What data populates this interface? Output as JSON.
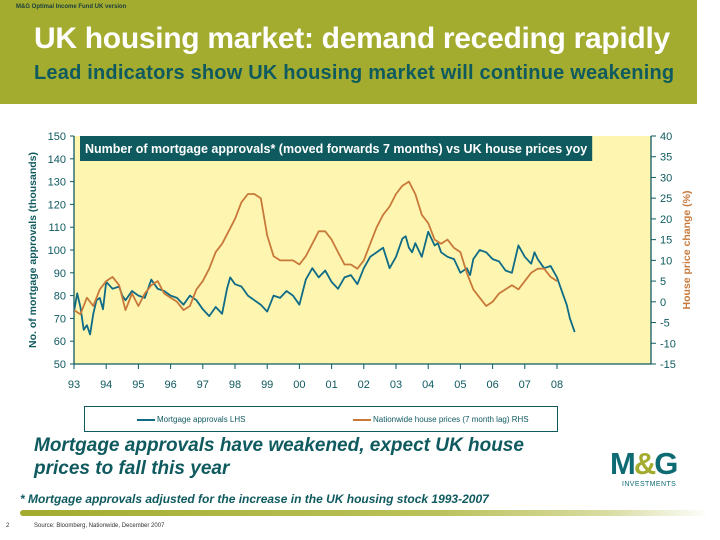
{
  "header": {
    "fund_label": "M&G Optimal Income Fund UK version",
    "title": "UK housing market: demand receding rapidly",
    "subtitle": "Lead indicators show UK housing market will continue weakening"
  },
  "conclusion": "Mortgage approvals have weakened, expect UK house prices to fall this year",
  "footnote": "* Mortgage approvals adjusted for the increase in the UK housing stock 1993-2007",
  "page_number": "2",
  "source": "Source: Bloomberg, Nationwide, December 2007",
  "logo": {
    "main_left": "M",
    "main_amp": "&",
    "main_right": "G",
    "sub": "INVESTMENTS"
  },
  "colors": {
    "header": "#a3ac2e",
    "teal": "#0f5a5f",
    "mortgage": "#0f6b86",
    "nationwide": "#c8793a",
    "plot_bg": "#fef6b0"
  },
  "chart_data": {
    "type": "line",
    "title": "Number of mortgage approvals* (moved forwards 7 months) vs UK house prices yoy",
    "ylabel": "No. of mortgage approvals (thousands)",
    "y2label": "House price change (%)",
    "ylim": [
      50,
      150
    ],
    "y2lim": [
      -15,
      40
    ],
    "xlim": [
      1993,
      2008.6
    ],
    "yticks": [
      "50",
      "60",
      "70",
      "80",
      "90",
      "100",
      "110",
      "120",
      "130",
      "140",
      "150"
    ],
    "y2ticks": [
      "-15",
      "-10",
      "-5",
      "0",
      "5",
      "10",
      "15",
      "20",
      "25",
      "30",
      "35",
      "40"
    ],
    "xticks": [
      "93",
      "94",
      "95",
      "96",
      "97",
      "98",
      "99",
      "00",
      "01",
      "02",
      "03",
      "04",
      "05",
      "06",
      "07",
      "08"
    ],
    "legend_position": "bottom",
    "grid": false,
    "series": [
      {
        "name": "Mortgage approvals LHS",
        "axis": "left",
        "x": [
          1993.0,
          1993.1,
          1993.2,
          1993.3,
          1993.4,
          1993.5,
          1993.6,
          1993.7,
          1993.8,
          1993.9,
          1994.0,
          1994.2,
          1994.4,
          1994.5,
          1994.6,
          1994.8,
          1995.0,
          1995.2,
          1995.4,
          1995.6,
          1995.8,
          1996.0,
          1996.2,
          1996.4,
          1996.6,
          1996.8,
          1997.0,
          1997.2,
          1997.4,
          1997.6,
          1997.75,
          1997.85,
          1998.0,
          1998.2,
          1998.3,
          1998.4,
          1998.6,
          1998.8,
          1999.0,
          1999.2,
          1999.4,
          1999.6,
          1999.8,
          2000.0,
          2000.2,
          2000.4,
          2000.6,
          2000.8,
          2001.0,
          2001.2,
          2001.4,
          2001.6,
          2001.8,
          2002.0,
          2002.2,
          2002.4,
          2002.6,
          2002.8,
          2003.0,
          2003.2,
          2003.3,
          2003.4,
          2003.5,
          2003.6,
          2003.8,
          2004.0,
          2004.2,
          2004.3,
          2004.4,
          2004.6,
          2004.8,
          2005.0,
          2005.2,
          2005.3,
          2005.4,
          2005.6,
          2005.8,
          2006.0,
          2006.2,
          2006.4,
          2006.6,
          2006.8,
          2007.0,
          2007.2,
          2007.3,
          2007.4,
          2007.6,
          2007.8,
          2008.0,
          2008.2,
          2008.3,
          2008.4,
          2008.55
        ],
        "values": [
          73,
          81,
          75,
          65,
          67,
          63,
          72,
          78,
          79,
          74,
          86,
          83,
          84,
          80,
          78,
          82,
          80,
          79,
          87,
          83,
          82,
          80,
          79,
          76,
          80,
          78,
          74,
          71,
          75,
          72,
          83,
          88,
          85,
          84,
          82,
          80,
          78,
          76,
          73,
          80,
          79,
          82,
          80,
          76,
          87,
          92,
          88,
          91,
          86,
          83,
          88,
          89,
          85,
          92,
          97,
          99,
          101,
          92,
          97,
          105,
          106,
          101,
          99,
          103,
          97,
          108,
          102,
          103,
          99,
          97,
          96,
          90,
          92,
          89,
          96,
          100,
          99,
          96,
          95,
          91,
          90,
          102,
          97,
          94,
          99,
          96,
          92,
          93,
          88,
          80,
          76,
          70,
          64
        ]
      },
      {
        "name": "Nationwide house prices (7 month lag) RHS",
        "axis": "right",
        "x": [
          1993.0,
          1993.2,
          1993.4,
          1993.6,
          1993.8,
          1994.0,
          1994.2,
          1994.4,
          1994.6,
          1994.8,
          1995.0,
          1995.2,
          1995.4,
          1995.6,
          1995.8,
          1996.0,
          1996.2,
          1996.4,
          1996.6,
          1996.8,
          1997.0,
          1997.2,
          1997.4,
          1997.6,
          1997.8,
          1998.0,
          1998.2,
          1998.4,
          1998.6,
          1998.8,
          1999.0,
          1999.2,
          1999.4,
          1999.6,
          1999.8,
          2000.0,
          2000.2,
          2000.4,
          2000.6,
          2000.8,
          2001.0,
          2001.2,
          2001.4,
          2001.6,
          2001.8,
          2002.0,
          2002.2,
          2002.4,
          2002.6,
          2002.8,
          2003.0,
          2003.2,
          2003.4,
          2003.6,
          2003.8,
          2004.0,
          2004.2,
          2004.4,
          2004.6,
          2004.8,
          2005.0,
          2005.2,
          2005.4,
          2005.6,
          2005.8,
          2006.0,
          2006.2,
          2006.4,
          2006.6,
          2006.8,
          2007.0,
          2007.2,
          2007.4,
          2007.6,
          2007.8,
          2008.0
        ],
        "values": [
          -2,
          -3,
          1,
          -1,
          3,
          5,
          6,
          4,
          -2,
          2,
          -1,
          2,
          4,
          5,
          2,
          1,
          0,
          -2,
          -1,
          3,
          5,
          8,
          12,
          14,
          17,
          20,
          24,
          26,
          26,
          25,
          16,
          11,
          10,
          10,
          10,
          9,
          11,
          14,
          17,
          17,
          15,
          12,
          9,
          9,
          8,
          10,
          14,
          18,
          21,
          23,
          26,
          28,
          29,
          26,
          21,
          19,
          15,
          14,
          15,
          13,
          12,
          7,
          3,
          1,
          -1,
          0,
          2,
          3,
          4,
          3,
          5,
          7,
          8,
          8,
          6,
          5
        ]
      }
    ]
  }
}
